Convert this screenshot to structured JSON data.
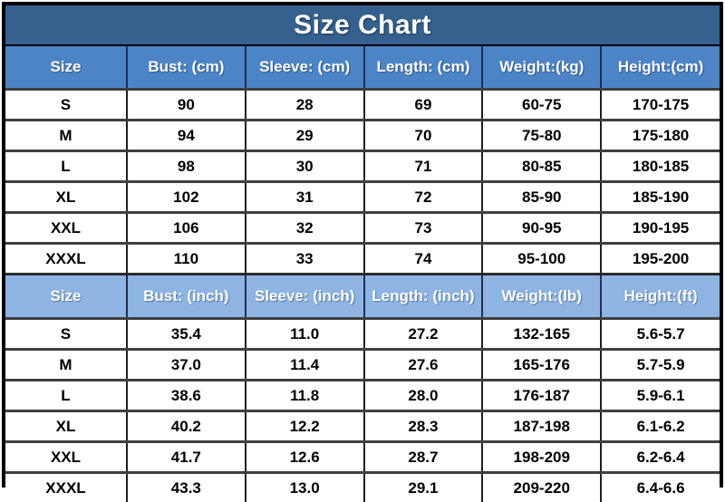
{
  "title": "Size Chart",
  "colors": {
    "title_bg": "#36618F",
    "header_cm_bg": "#4C84C5",
    "header_inch_bg": "#8DB4E2",
    "header_text": "#FFFFFF",
    "data_text": "#000000",
    "row_divider": "#3F3F3F",
    "outer_border": "#000000"
  },
  "chart_data": {
    "type": "table",
    "title": "Size Chart",
    "sections": [
      {
        "id": "cm",
        "columns": [
          "Size",
          "Bust: (cm)",
          "Sleeve: (cm)",
          "Length: (cm)",
          "Weight:(kg)",
          "Height:(cm)"
        ],
        "rows": [
          [
            "S",
            "90",
            "28",
            "69",
            "60-75",
            "170-175"
          ],
          [
            "M",
            "94",
            "29",
            "70",
            "75-80",
            "175-180"
          ],
          [
            "L",
            "98",
            "30",
            "71",
            "80-85",
            "180-185"
          ],
          [
            "XL",
            "102",
            "31",
            "72",
            "85-90",
            "185-190"
          ],
          [
            "XXL",
            "106",
            "32",
            "73",
            "90-95",
            "190-195"
          ],
          [
            "XXXL",
            "110",
            "33",
            "74",
            "95-100",
            "195-200"
          ]
        ]
      },
      {
        "id": "inch",
        "columns": [
          "Size",
          "Bust: (inch)",
          "Sleeve: (inch)",
          "Length: (inch)",
          "Weight:(lb)",
          "Height:(ft)"
        ],
        "rows": [
          [
            "S",
            "35.4",
            "11.0",
            "27.2",
            "132-165",
            "5.6-5.7"
          ],
          [
            "M",
            "37.0",
            "11.4",
            "27.6",
            "165-176",
            "5.7-5.9"
          ],
          [
            "L",
            "38.6",
            "11.8",
            "28.0",
            "176-187",
            "5.9-6.1"
          ],
          [
            "XL",
            "40.2",
            "12.2",
            "28.3",
            "187-198",
            "6.1-6.2"
          ],
          [
            "XXL",
            "41.7",
            "12.6",
            "28.7",
            "198-209",
            "6.2-6.4"
          ],
          [
            "XXXL",
            "43.3",
            "13.0",
            "29.1",
            "209-220",
            "6.4-6.6"
          ]
        ]
      }
    ]
  }
}
